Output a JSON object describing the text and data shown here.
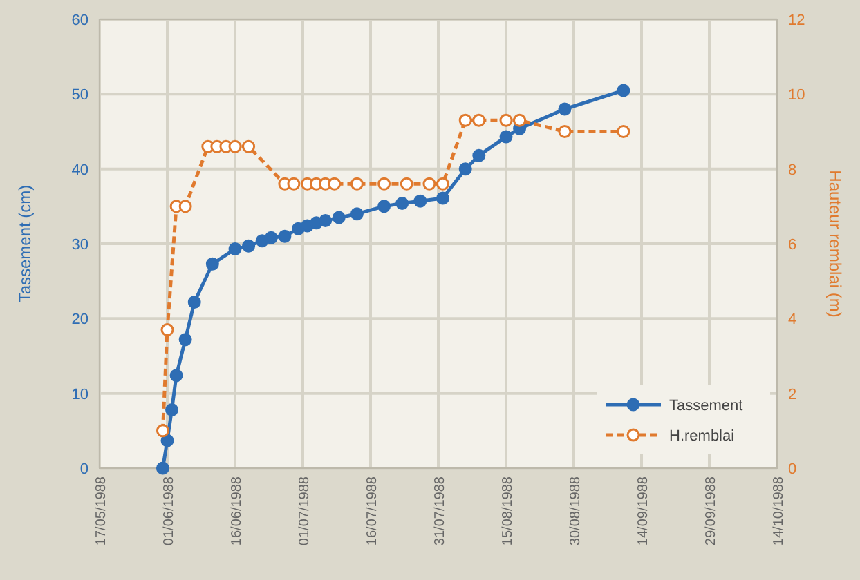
{
  "chart_data": {
    "type": "line",
    "ylabel": "Tassement (cm)",
    "y2label": "Hauteur remblai (m)",
    "xlim": [
      "1988-05-17",
      "1988-10-14"
    ],
    "xticks": [
      {
        "value": "1988-05-17",
        "label": "17/05/1988"
      },
      {
        "value": "1988-06-01",
        "label": "01/06/1988"
      },
      {
        "value": "1988-06-16",
        "label": "16/06/1988"
      },
      {
        "value": "1988-07-01",
        "label": "01/07/1988"
      },
      {
        "value": "1988-07-16",
        "label": "16/07/1988"
      },
      {
        "value": "1988-07-31",
        "label": "31/07/1988"
      },
      {
        "value": "1988-08-15",
        "label": "15/08/1988"
      },
      {
        "value": "1988-08-30",
        "label": "30/08/1988"
      },
      {
        "value": "1988-09-14",
        "label": "14/09/1988"
      },
      {
        "value": "1988-09-29",
        "label": "29/09/1988"
      },
      {
        "value": "1988-10-14",
        "label": "14/10/1988"
      }
    ],
    "ylim": [
      0,
      60
    ],
    "yticks": [
      0,
      10,
      20,
      30,
      40,
      50,
      60
    ],
    "y2lim": [
      0,
      12
    ],
    "y2ticks": [
      0,
      2,
      4,
      6,
      8,
      10,
      12
    ],
    "grid": true,
    "legend": "bottom right",
    "series": [
      {
        "name": "Tassement",
        "color": "#2e6db4",
        "marker": "circle",
        "line_style": "solid",
        "x": [
          "1988-05-31",
          "1988-06-01",
          "1988-06-02",
          "1988-06-03",
          "1988-06-05",
          "1988-06-07",
          "1988-06-11",
          "1988-06-16",
          "1988-06-19",
          "1988-06-22",
          "1988-06-24",
          "1988-06-27",
          "1988-06-30",
          "1988-07-02",
          "1988-07-04",
          "1988-07-06",
          "1988-07-09",
          "1988-07-13",
          "1988-07-19",
          "1988-07-23",
          "1988-07-27",
          "1988-08-01",
          "1988-08-06",
          "1988-08-09",
          "1988-08-15",
          "1988-08-18",
          "1988-08-28",
          "1988-09-10"
        ],
        "values": [
          0,
          3.7,
          7.8,
          12.4,
          17.2,
          22.2,
          27.3,
          29.3,
          29.7,
          30.4,
          30.8,
          31,
          32,
          32.4,
          32.8,
          33.1,
          33.5,
          34,
          35,
          35.4,
          35.7,
          36.1,
          40,
          41.8,
          44.3,
          45.4,
          48,
          50.5
        ]
      },
      {
        "name": "H.remblai",
        "color": "#e07a2e",
        "marker": "circle",
        "line_style": "dashed",
        "axis": "y2",
        "x": [
          "1988-05-31",
          "1988-06-01",
          "1988-06-03",
          "1988-06-05",
          "1988-06-10",
          "1988-06-12",
          "1988-06-14",
          "1988-06-16",
          "1988-06-19",
          "1988-06-27",
          "1988-06-29",
          "1988-07-02",
          "1988-07-04",
          "1988-07-06",
          "1988-07-08",
          "1988-07-13",
          "1988-07-19",
          "1988-07-24",
          "1988-07-29",
          "1988-08-01",
          "1988-08-06",
          "1988-08-09",
          "1988-08-15",
          "1988-08-18",
          "1988-08-28",
          "1988-09-10"
        ],
        "values": [
          1,
          3.7,
          7,
          7,
          8.6,
          8.6,
          8.6,
          8.6,
          8.6,
          7.6,
          7.6,
          7.6,
          7.6,
          7.6,
          7.6,
          7.6,
          7.6,
          7.6,
          7.6,
          7.6,
          9.3,
          9.3,
          9.3,
          9.3,
          9,
          9
        ]
      }
    ]
  }
}
